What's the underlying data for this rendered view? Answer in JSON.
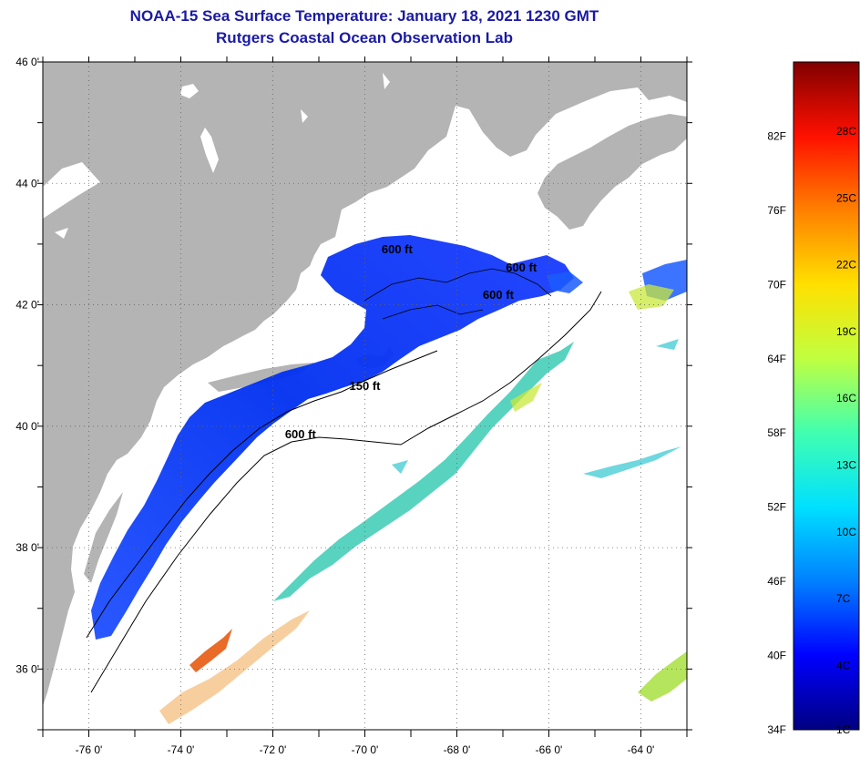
{
  "title": {
    "line1": "NOAA-15 Sea Surface Temperature:  January 18, 2021 1230 GMT",
    "line2": "Rutgers Coastal Ocean Observation Lab"
  },
  "map": {
    "lat_labels": [
      "46 0'",
      "44 0'",
      "42 0'",
      "40 0'",
      "38 0'",
      "36 0'"
    ],
    "lat_values": [
      46,
      44,
      42,
      40,
      38,
      36
    ],
    "lon_labels": [
      "-76 0'",
      "-74 0'",
      "-72 0'",
      "-70 0'",
      "-68 0'",
      "-66 0'",
      "-64 0'"
    ],
    "lon_values": [
      -76,
      -74,
      -72,
      -70,
      -68,
      -66,
      -64
    ],
    "lat_range": [
      35,
      46
    ],
    "lon_range": [
      -77,
      -63
    ],
    "grid": "dotted",
    "land_color": "#b4b4b4",
    "no_data_color": "#ffffff",
    "contour_labels": [
      {
        "text": "600 ft",
        "lon": -69.3,
        "lat": 42.85
      },
      {
        "text": "600 ft",
        "lon": -66.6,
        "lat": 42.55
      },
      {
        "text": "600 ft",
        "lon": -67.1,
        "lat": 42.1
      },
      {
        "text": "150 ft",
        "lon": -70.0,
        "lat": 40.6
      },
      {
        "text": "600 ft",
        "lon": -71.4,
        "lat": 39.8
      }
    ]
  },
  "colorbar": {
    "fahrenheit": [
      "82F",
      "76F",
      "70F",
      "64F",
      "58F",
      "52F",
      "46F",
      "40F",
      "34F"
    ],
    "fahrenheit_values": [
      82,
      76,
      70,
      64,
      58,
      52,
      46,
      40,
      34
    ],
    "celsius": [
      "28C",
      "25C",
      "22C",
      "19C",
      "16C",
      "13C",
      "10C",
      "7C",
      "4C",
      "1C"
    ],
    "celsius_values": [
      28,
      25,
      22,
      19,
      16,
      13,
      10,
      7,
      4,
      1
    ],
    "colors": [
      "#000080",
      "#0000ff",
      "#0080ff",
      "#00e0ff",
      "#40ffb0",
      "#c0ff40",
      "#ffe000",
      "#ff8000",
      "#ff1000",
      "#800000"
    ]
  }
}
